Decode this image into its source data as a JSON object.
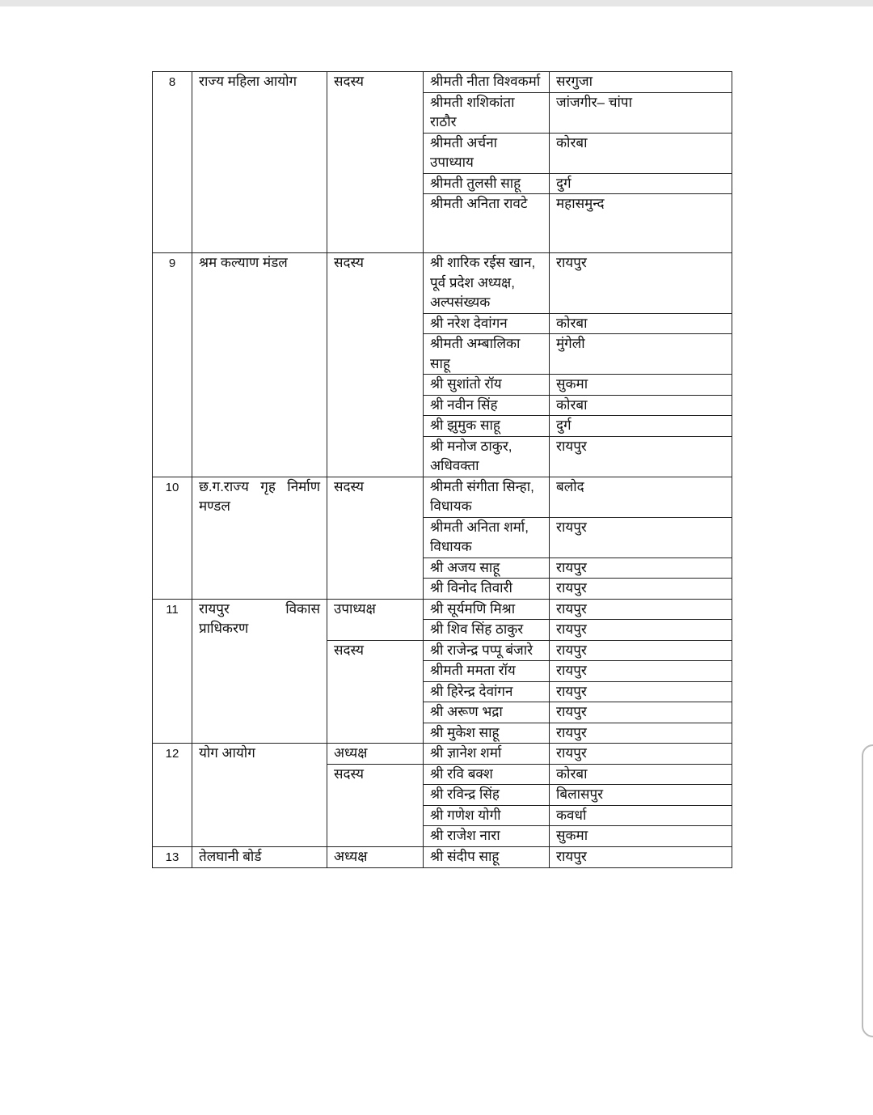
{
  "groups": [
    {
      "no": "8",
      "body": "राज्य महिला आयोग",
      "roles": [
        {
          "role": "सदस्य",
          "members": [
            {
              "name": "श्रीमती नीता विश्वकर्मा",
              "district": "सरगुजा"
            },
            {
              "name": "श्रीमती शशिकांता राठौर",
              "district": "जांजगीर– चांपा"
            },
            {
              "name": "श्रीमती अर्चना उपाध्याय",
              "district": "कोरबा"
            },
            {
              "name": "श्रीमती तुलसी साहू",
              "district": "दुर्ग"
            },
            {
              "name": "श्रीमती अनिता रावटे",
              "district": "महासमुन्द"
            }
          ]
        }
      ]
    },
    {
      "no": "9",
      "body": "श्रम कल्याण मंडल",
      "roles": [
        {
          "role": "सदस्य",
          "members": [
            {
              "name": "श्री शारिक रईस खान, पूर्व प्रदेश अध्यक्ष, अल्पसंख्यक",
              "district": "रायपुर"
            },
            {
              "name": "श्री नरेश देवांगन",
              "district": "कोरबा"
            },
            {
              "name": "श्रीमती अम्बालिका साहू",
              "district": "मुंगेली"
            },
            {
              "name": "श्री सुशांतो रॉय",
              "district": "सुकमा"
            },
            {
              "name": "श्री नवीन सिंह",
              "district": "कोरबा"
            },
            {
              "name": "श्री झुमुक साहू",
              "district": "दुर्ग"
            },
            {
              "name": "श्री मनोज ठाकुर, अधिवक्ता",
              "district": "रायपुर"
            }
          ]
        }
      ]
    },
    {
      "no": "10",
      "body": "छ.ग.राज्य गृह निर्माण मण्डल",
      "roles": [
        {
          "role": "सदस्य",
          "members": [
            {
              "name": "श्रीमती संगीता सिन्हा, विधायक",
              "district": "बलोद"
            },
            {
              "name": "श्रीमती अनिता शर्मा, विधायक",
              "district": "रायपुर"
            },
            {
              "name": "श्री अजय साहू",
              "district": "रायपुर"
            },
            {
              "name": "श्री विनोद तिवारी",
              "district": "रायपुर"
            }
          ]
        }
      ]
    },
    {
      "no": "11",
      "body": "रायपुर विकास प्राधिकरण",
      "roles": [
        {
          "role": "उपाध्यक्ष",
          "members": [
            {
              "name": "श्री सूर्यमणि मिश्रा",
              "district": "रायपुर"
            },
            {
              "name": "श्री शिव सिंह ठाकुर",
              "district": "रायपुर"
            }
          ]
        },
        {
          "role": "सदस्य",
          "members": [
            {
              "name": "श्री राजेन्द्र पप्पू बंजारे",
              "district": "रायपुर"
            },
            {
              "name": "श्रीमती ममता रॉय",
              "district": "रायपुर"
            },
            {
              "name": "श्री हिरेन्द्र देवांगन",
              "district": "रायपुर"
            },
            {
              "name": "श्री अरूण भद्रा",
              "district": "रायपुर"
            },
            {
              "name": "श्री मुकेश साहू",
              "district": "रायपुर"
            }
          ]
        }
      ]
    },
    {
      "no": "12",
      "body": "योग आयोग",
      "roles": [
        {
          "role": "अध्यक्ष",
          "members": [
            {
              "name": "श्री ज्ञानेश शर्मा",
              "district": "रायपुर"
            }
          ]
        },
        {
          "role": "सदस्य",
          "members": [
            {
              "name": "श्री रवि बक्श",
              "district": "कोरबा"
            },
            {
              "name": "श्री रविन्द्र सिंह",
              "district": "बिलासपुर"
            },
            {
              "name": "श्री गणेश योगी",
              "district": "कवर्धा"
            },
            {
              "name": "श्री राजेश नारा",
              "district": "सुकमा"
            }
          ]
        }
      ]
    },
    {
      "no": "13",
      "body": "तेलघानी बोर्ड",
      "roles": [
        {
          "role": "अध्यक्ष",
          "members": [
            {
              "name": "श्री संदीप साहू",
              "district": "रायपुर"
            }
          ]
        }
      ]
    }
  ]
}
